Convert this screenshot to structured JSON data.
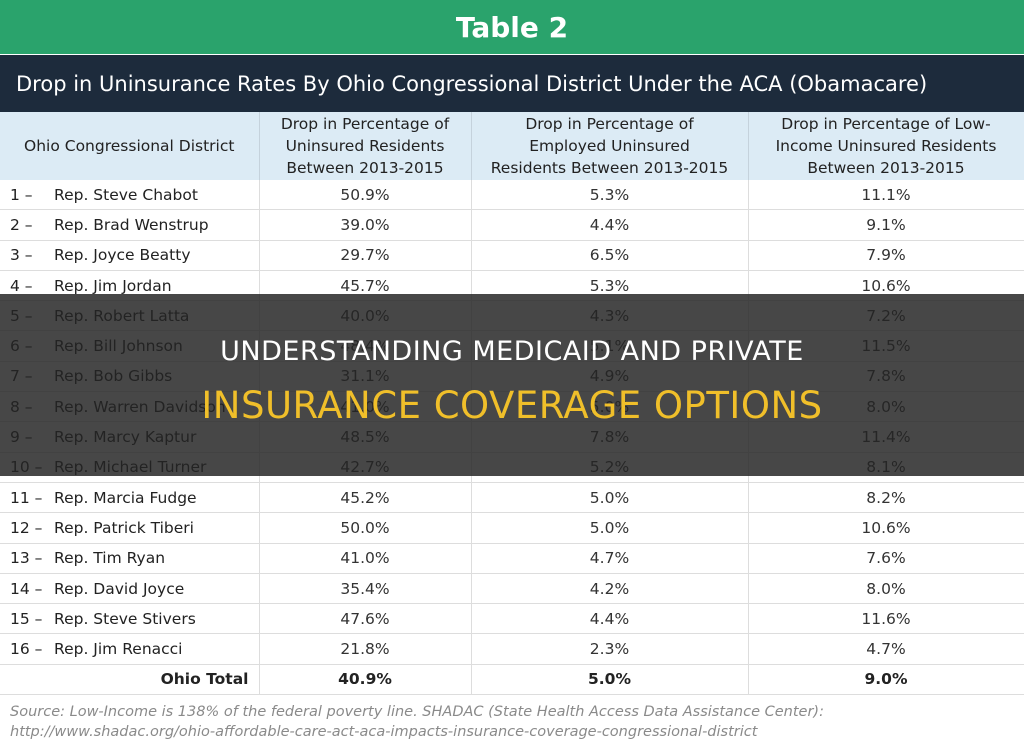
{
  "header": {
    "title": "Table 2",
    "subtitle": "Drop in Uninsurance Rates By Ohio Congressional District Under the ACA (Obamacare)"
  },
  "table": {
    "columns": [
      "Ohio Congressional District",
      "Drop in Percentage of\nUninsured Residents\nBetween 2013-2015",
      "Drop in Percentage of\nEmployed Uninsured\nResidents Between 2013-2015",
      "Drop in Percentage of Low-\nIncome Uninsured Residents\nBetween 2013-2015"
    ],
    "rows": [
      {
        "district": "1 –",
        "rep": "Rep. Steve Chabot",
        "uninsured": "50.9%",
        "employed": "5.3%",
        "low_income": "11.1%"
      },
      {
        "district": "2 –",
        "rep": "Rep. Brad Wenstrup",
        "uninsured": "39.0%",
        "employed": "4.4%",
        "low_income": "9.1%"
      },
      {
        "district": "3 –",
        "rep": "Rep. Joyce Beatty",
        "uninsured": "29.7%",
        "employed": "6.5%",
        "low_income": "7.9%"
      },
      {
        "district": "4 –",
        "rep": "Rep. Jim Jordan",
        "uninsured": "45.7%",
        "employed": "5.3%",
        "low_income": "10.6%"
      },
      {
        "district": "5 –",
        "rep": "Rep. Robert Latta",
        "uninsured": "40.0%",
        "employed": "4.3%",
        "low_income": "7.2%"
      },
      {
        "district": "6 –",
        "rep": "Rep. Bill Johnson",
        "uninsured": "48.4%",
        "employed": "5.1%",
        "low_income": "11.5%"
      },
      {
        "district": "7 –",
        "rep": "Rep. Bob Gibbs",
        "uninsured": "31.1%",
        "employed": "4.9%",
        "low_income": "7.8%"
      },
      {
        "district": "8 –",
        "rep": "Rep. Warren Davidson",
        "uninsured": "41.0%",
        "employed": "5.0%",
        "low_income": "8.0%"
      },
      {
        "district": "9 –",
        "rep": "Rep. Marcy Kaptur",
        "uninsured": "48.5%",
        "employed": "7.8%",
        "low_income": "11.4%"
      },
      {
        "district": "10 –",
        "rep": "Rep. Michael Turner",
        "uninsured": "42.7%",
        "employed": "5.2%",
        "low_income": "8.1%"
      },
      {
        "district": "11 –",
        "rep": "Rep. Marcia Fudge",
        "uninsured": "45.2%",
        "employed": "5.0%",
        "low_income": "8.2%"
      },
      {
        "district": "12 –",
        "rep": "Rep. Patrick Tiberi",
        "uninsured": "50.0%",
        "employed": "5.0%",
        "low_income": "10.6%"
      },
      {
        "district": "13 –",
        "rep": "Rep. Tim Ryan",
        "uninsured": "41.0%",
        "employed": "4.7%",
        "low_income": "7.6%"
      },
      {
        "district": "14 –",
        "rep": "Rep. David Joyce",
        "uninsured": "35.4%",
        "employed": "4.2%",
        "low_income": "8.0%"
      },
      {
        "district": "15 –",
        "rep": "Rep. Steve Stivers",
        "uninsured": "47.6%",
        "employed": "4.4%",
        "low_income": "11.6%"
      },
      {
        "district": "16 –",
        "rep": "Rep. Jim Renacci",
        "uninsured": "21.8%",
        "employed": "2.3%",
        "low_income": "4.7%"
      }
    ],
    "total": {
      "label": "Ohio Total",
      "uninsured": "40.9%",
      "employed": "5.0%",
      "low_income": "9.0%"
    }
  },
  "source": "Source: Low-Income is 138% of the federal poverty line. SHADAC (State Health Access Data Assistance Center): http://www.shadac.org/ohio-affordable-care-act-aca-impacts-insurance-coverage-congressional-district",
  "overlay": {
    "line1": "UNDERSTANDING MEDICAID AND PRIVATE",
    "line2": "INSURANCE COVERAGE OPTIONS"
  },
  "colors": {
    "title_bg": "#2aa36c",
    "subtitle_bg": "#1d2b3c",
    "header_bg": "#dcebf5",
    "overlay_accent": "#f0bf2a"
  }
}
